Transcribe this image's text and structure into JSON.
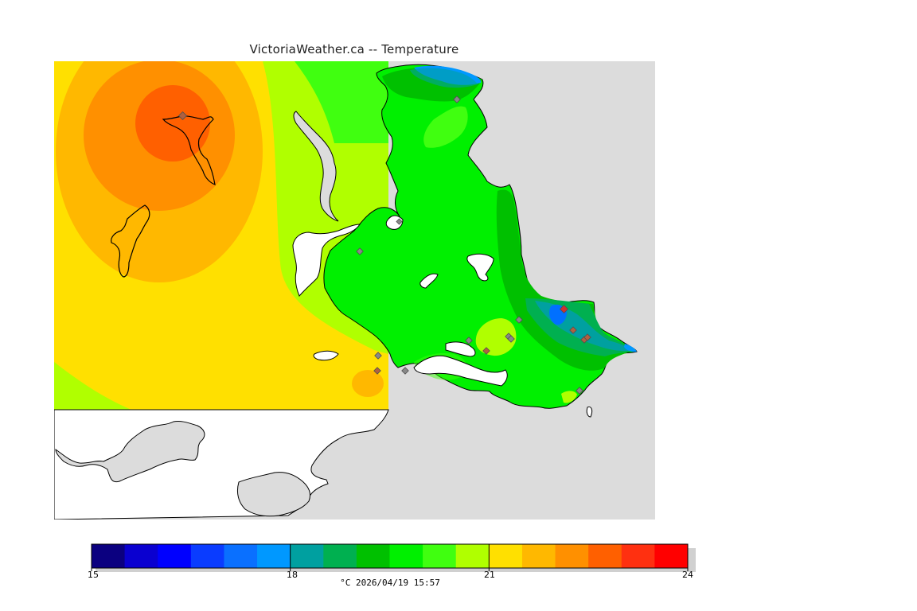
{
  "title": "VictoriaWeather.ca -- Temperature",
  "colors": {
    "background_land": "#dcdcdc",
    "water_unmodeled": "#ffffff",
    "coast": "#000000",
    "station_marker": "#b06040"
  },
  "legend": {
    "min": 15,
    "max": 24,
    "bin_colors": [
      "#0b0080",
      "#0a00d0",
      "#0000ff",
      "#0a3cff",
      "#0a70ff",
      "#0098ff",
      "#00a0a0",
      "#00b050",
      "#00c000",
      "#00f000",
      "#40ff10",
      "#b0ff00",
      "#ffe000",
      "#ffb800",
      "#ff9000",
      "#ff6000",
      "#ff3010",
      "#ff0000"
    ],
    "tick_labels": [
      "15",
      "18",
      "21",
      "24"
    ],
    "units_timestamp": "°C  2026/04/19 15:57"
  }
}
